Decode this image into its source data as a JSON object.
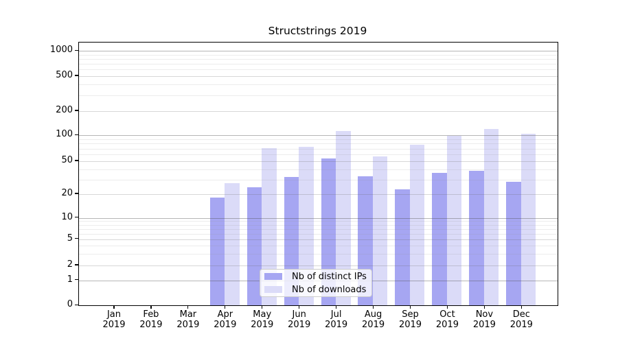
{
  "title": "Structstrings 2019",
  "legend": {
    "items": [
      {
        "label": "Nb of distinct IPs",
        "color": "#a6a6f2"
      },
      {
        "label": "Nb of downloads",
        "color": "#dbdbf8"
      }
    ]
  },
  "chart_data": {
    "type": "bar",
    "title": "Structstrings 2019",
    "categories": [
      "Jan 2019",
      "Feb 2019",
      "Mar 2019",
      "Apr 2019",
      "May 2019",
      "Jun 2019",
      "Jul 2019",
      "Aug 2019",
      "Sep 2019",
      "Oct 2019",
      "Nov 2019",
      "Dec 2019"
    ],
    "x_tick_month": [
      "Jan",
      "Feb",
      "Mar",
      "Apr",
      "May",
      "Jun",
      "Jul",
      "Aug",
      "Sep",
      "Oct",
      "Nov",
      "Dec"
    ],
    "x_tick_year": "2019",
    "series": [
      {
        "name": "Nb of distinct IPs",
        "color": "#a6a6f2",
        "values": [
          0,
          0,
          0,
          18,
          24,
          32,
          54,
          33,
          23,
          36,
          38,
          28
        ]
      },
      {
        "name": "Nb of downloads",
        "color": "#dbdbf8",
        "values": [
          0,
          0,
          0,
          27,
          71,
          73,
          114,
          57,
          78,
          98,
          120,
          105
        ]
      }
    ],
    "y_axis": {
      "scale": "log-like",
      "tick_values": [
        0,
        1,
        2,
        5,
        10,
        20,
        50,
        100,
        200,
        500,
        1000
      ],
      "tick_labels": [
        "0",
        "1",
        "2",
        "5",
        "10",
        "20",
        "50",
        "100",
        "200",
        "500",
        "1000"
      ],
      "range": [
        0,
        1000
      ]
    },
    "grid": "horizontal, log major+minor",
    "legend_position": "lower center"
  }
}
